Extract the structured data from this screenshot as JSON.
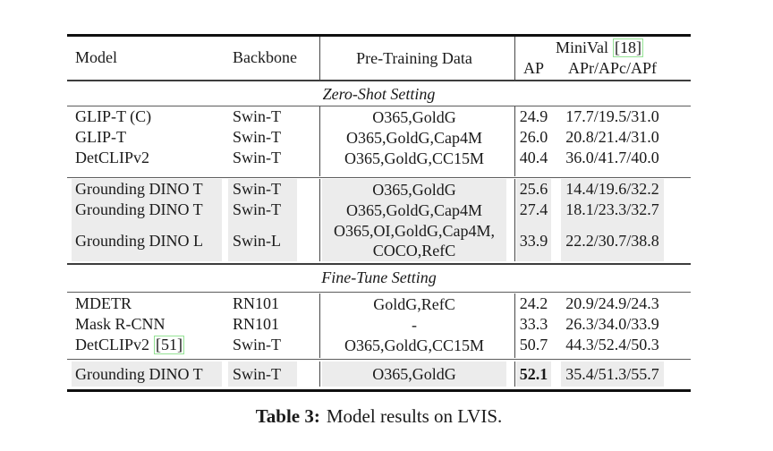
{
  "caption": {
    "label": "Table 3:",
    "text": "Model results on LVIS."
  },
  "table": {
    "header": {
      "model": "Model",
      "backbone": "Backbone",
      "pretrain": "Pre-Training Data",
      "group_label": "MiniVal",
      "group_cite": "[18]",
      "ap_label": "AP",
      "apr_label": "APr/APc/APf"
    },
    "section_titles": [
      "Zero-Shot Setting",
      "Fine-Tune Setting"
    ],
    "colors": {
      "highlight": "#ececec",
      "cite_border": "#94e294",
      "rule_heavy": "#0f0f0f",
      "rule_medium": "#3d3d3d",
      "rule_light": "#5c5c5c",
      "text": "#1a1a1a"
    },
    "blocks": [
      {
        "id": "zs-plain",
        "highlight": false,
        "rows": [
          {
            "model": "GLIP-T (C)",
            "backbone": "Swin-T",
            "pretrain": [
              "O365,GoldG"
            ],
            "ap": "24.9",
            "apr": "17.7/19.5/31.0"
          },
          {
            "model": "GLIP-T",
            "backbone": "Swin-T",
            "pretrain": [
              "O365,GoldG,Cap4M"
            ],
            "ap": "26.0",
            "apr": "20.8/21.4/31.0"
          },
          {
            "model": "DetCLIPv2",
            "backbone": "Swin-T",
            "pretrain": [
              "O365,GoldG,CC15M"
            ],
            "ap": "40.4",
            "apr": "36.0/41.7/40.0"
          }
        ]
      },
      {
        "id": "zs-gd",
        "highlight": true,
        "rows": [
          {
            "model": "Grounding DINO T",
            "backbone": "Swin-T",
            "pretrain": [
              "O365,GoldG"
            ],
            "ap": "25.6",
            "apr": "14.4/19.6/32.2"
          },
          {
            "model": "Grounding DINO T",
            "backbone": "Swin-T",
            "pretrain": [
              "O365,GoldG,Cap4M"
            ],
            "ap": "27.4",
            "apr": "18.1/23.3/32.7"
          },
          {
            "model": "Grounding DINO L",
            "backbone": "Swin-L",
            "pretrain": [
              "O365,OI,GoldG,Cap4M,",
              "COCO,RefC"
            ],
            "ap": "33.9",
            "apr": "22.2/30.7/38.8"
          }
        ]
      },
      {
        "id": "ft-plain",
        "highlight": false,
        "rows": [
          {
            "model": "MDETR",
            "backbone": "RN101",
            "pretrain": [
              "GoldG,RefC"
            ],
            "ap": "24.2",
            "apr": "20.9/24.9/24.3"
          },
          {
            "model": "Mask R-CNN",
            "backbone": "RN101",
            "pretrain": [
              "-"
            ],
            "ap": "33.3",
            "apr": "26.3/34.0/33.9"
          },
          {
            "model": "DetCLIPv2",
            "model_cite": "[51]",
            "backbone": "Swin-T",
            "pretrain": [
              "O365,GoldG,CC15M"
            ],
            "ap": "50.7",
            "apr": "44.3/52.4/50.3"
          }
        ]
      },
      {
        "id": "ft-gd",
        "highlight": true,
        "rows": [
          {
            "model": "Grounding DINO T",
            "backbone": "Swin-T",
            "pretrain": [
              "O365,GoldG"
            ],
            "ap": "52.1",
            "ap_bold": true,
            "apr": "35.4/51.3/55.7"
          }
        ]
      }
    ]
  }
}
